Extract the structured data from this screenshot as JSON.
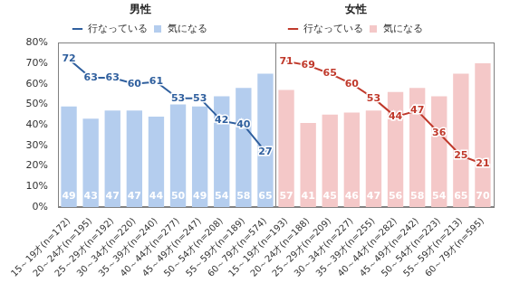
{
  "chart_data": [
    {
      "type": "bar",
      "title": "男性",
      "categories": [
        "15～19才(n=172)",
        "20～24才(n=195)",
        "25～29才(n=192)",
        "30～34才(n=220)",
        "35～39才(n=240)",
        "40～44才(n=277)",
        "45～49才(n=247)",
        "50～54才(n=208)",
        "55～59才(n=189)",
        "60～79才(n=574)"
      ],
      "series": [
        {
          "name": "気になる",
          "type": "bar",
          "color": "#b4cdee",
          "values": [
            49,
            43,
            47,
            47,
            44,
            50,
            49,
            54,
            58,
            65
          ]
        },
        {
          "name": "行なっている",
          "type": "line",
          "color": "#2f5f9e",
          "values": [
            72,
            63,
            63,
            60,
            61,
            53,
            53,
            42,
            40,
            27
          ]
        }
      ],
      "ylim": [
        0,
        80
      ],
      "yticks": [
        {
          "value": 0,
          "label": "0%"
        },
        {
          "value": 10,
          "label": "10%"
        },
        {
          "value": 20,
          "label": "20%"
        },
        {
          "value": 30,
          "label": "30%"
        },
        {
          "value": 40,
          "label": "40%"
        },
        {
          "value": 50,
          "label": "50%"
        },
        {
          "value": 60,
          "label": "60%"
        },
        {
          "value": 70,
          "label": "70%"
        },
        {
          "value": 80,
          "label": "80%"
        }
      ],
      "grid": false,
      "data_labels": true,
      "legend": "top"
    },
    {
      "type": "bar",
      "title": "女性",
      "categories": [
        "15～19才(n=193)",
        "20～24才(n=188)",
        "25～29才(n=209)",
        "30～34才(n=227)",
        "35～39才(n=255)",
        "40～44才(n=282)",
        "45～49才(n=242)",
        "50～54才(n=223)",
        "55～59才(n=213)",
        "60～79才(n=595)"
      ],
      "series": [
        {
          "name": "気になる",
          "type": "bar",
          "color": "#f4c8c8",
          "values": [
            57,
            41,
            45,
            46,
            47,
            56,
            58,
            54,
            65,
            70
          ]
        },
        {
          "name": "行なっている",
          "type": "line",
          "color": "#c0392b",
          "values": [
            71,
            69,
            65,
            60,
            53,
            44,
            47,
            36,
            25,
            21
          ]
        }
      ],
      "ylim": [
        0,
        80
      ],
      "yticks": [
        {
          "value": 0,
          "label": "0%"
        },
        {
          "value": 10,
          "label": "10%"
        },
        {
          "value": 20,
          "label": "20%"
        },
        {
          "value": 30,
          "label": "30%"
        },
        {
          "value": 40,
          "label": "40%"
        },
        {
          "value": 50,
          "label": "50%"
        },
        {
          "value": 60,
          "label": "60%"
        },
        {
          "value": 70,
          "label": "70%"
        },
        {
          "value": 80,
          "label": "80%"
        }
      ],
      "grid": false,
      "data_labels": true,
      "legend": "top",
      "tick_labels": "x"
    }
  ]
}
